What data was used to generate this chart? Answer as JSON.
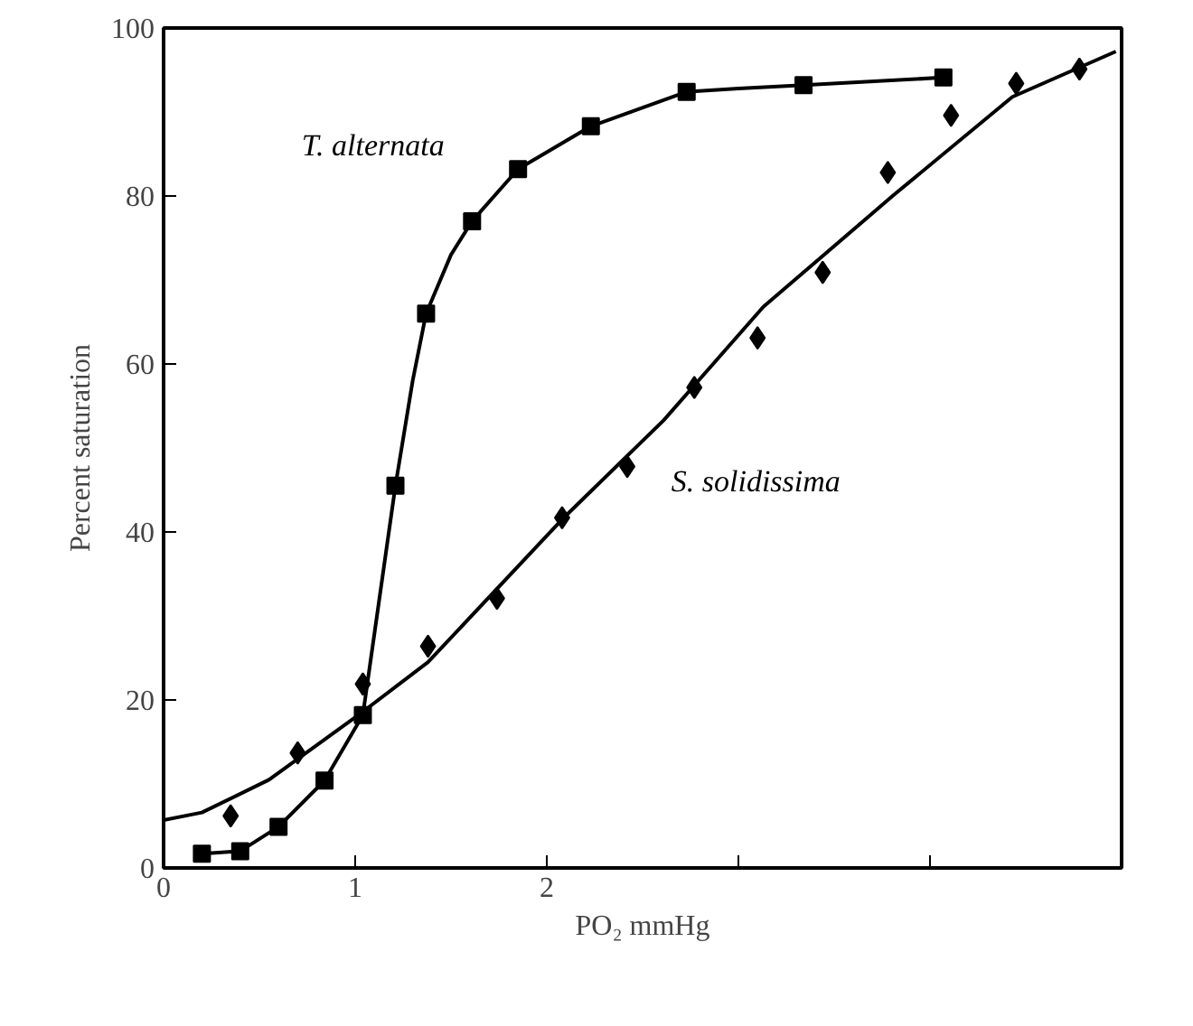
{
  "chart_data": {
    "type": "scatter",
    "xlabel": "PO₂ mmHg",
    "ylabel": "Percent saturation",
    "xlim": [
      0,
      5
    ],
    "ylim": [
      0,
      100
    ],
    "xticks": [
      0,
      1,
      2,
      {
        "value": 3,
        "label": null
      },
      {
        "value": 4,
        "label": null
      },
      {
        "value": 5,
        "label": null
      }
    ],
    "yticks": [
      0,
      20,
      40,
      60,
      80,
      100
    ],
    "grid": false,
    "series": [
      {
        "name": "T. alternata",
        "marker": "square",
        "color": "#000000",
        "x": [
          0.2,
          0.4,
          0.6,
          0.84,
          1.04,
          1.21,
          1.37,
          1.61,
          1.85,
          2.23,
          2.73,
          3.34,
          4.07
        ],
        "values": [
          1.7,
          2.0,
          4.9,
          10.4,
          18.2,
          45.5,
          66.0,
          77.0,
          83.2,
          88.3,
          92.4,
          93.2,
          94.1
        ]
      },
      {
        "name": "S. solidissima",
        "marker": "diamond",
        "color": "#000000",
        "x": [
          0.35,
          0.7,
          1.04,
          1.38,
          1.74,
          2.08,
          2.42,
          2.77,
          3.1,
          3.44,
          3.78,
          4.11,
          4.45,
          4.78
        ],
        "values": [
          6.2,
          13.7,
          21.9,
          26.4,
          32.1,
          41.7,
          47.8,
          57.2,
          63.1,
          70.9,
          82.8,
          89.6,
          93.4,
          95.1
        ]
      },
      {
        "type": "line",
        "line_style": "solid",
        "color": "#000000",
        "x": [
          0.2,
          0.4,
          0.6,
          0.84,
          1.04,
          1.21,
          1.3,
          1.37,
          1.5,
          1.61,
          1.85,
          2.23,
          2.73,
          3.0,
          3.34,
          4.07
        ],
        "values": [
          1.7,
          2.0,
          4.9,
          10.4,
          18.2,
          45.5,
          58,
          66.0,
          73,
          77.0,
          83.2,
          88.3,
          92.4,
          92.8,
          93.2,
          94.1
        ]
      },
      {
        "type": "line",
        "line_style": "solid",
        "color": "#000000",
        "x": [
          0,
          0.2,
          0.55,
          1.04,
          1.38,
          2.08,
          2.61,
          3.13,
          3.81,
          4.43,
          4.97
        ],
        "values": [
          5.7,
          6.6,
          10.5,
          18.6,
          24.5,
          41.5,
          53.3,
          66.8,
          80.1,
          91.8,
          97.2
        ]
      }
    ]
  }
}
